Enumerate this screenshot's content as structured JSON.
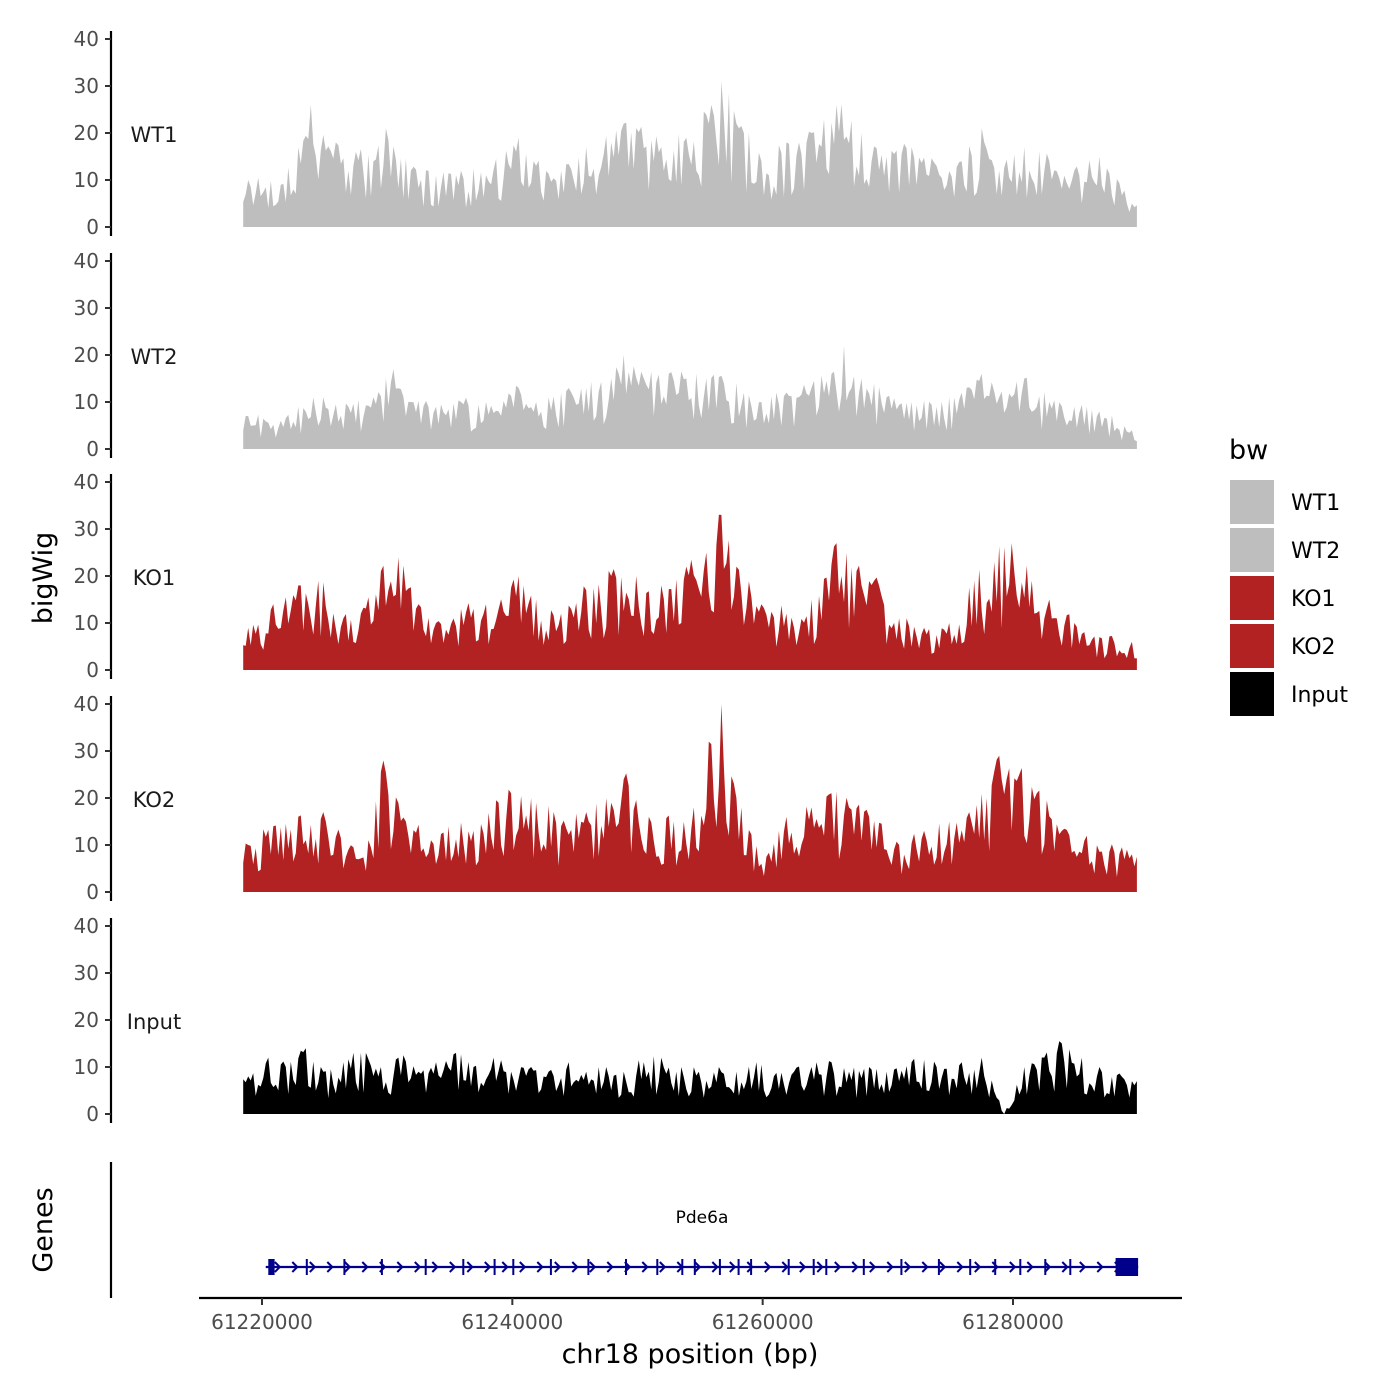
{
  "chart_data": {
    "type": "area",
    "chrom": "chr18",
    "xlabel": "chr18 position (bp)",
    "ylabel": "bigWig",
    "genes_label": "Genes",
    "xlim": [
      61214000,
      61296000
    ],
    "data_xrange": [
      61218500,
      61290000
    ],
    "x_ticks": [
      61220000,
      61240000,
      61260000,
      61280000
    ],
    "x_tick_labels": [
      "61220000",
      "61240000",
      "61260000",
      "61280000"
    ],
    "ylim": [
      0,
      40
    ],
    "y_ticks": [
      0,
      10,
      20,
      30,
      40
    ],
    "y_tick_labels": [
      "0",
      "10",
      "20",
      "30",
      "40"
    ],
    "legend": {
      "title": "bw",
      "entries": [
        {
          "label": "WT1",
          "color": "#bebebe"
        },
        {
          "label": "WT2",
          "color": "#bebebe"
        },
        {
          "label": "KO1",
          "color": "#b22222"
        },
        {
          "label": "KO2",
          "color": "#b22222"
        },
        {
          "label": "Input",
          "color": "#000000"
        }
      ]
    },
    "tracks": [
      {
        "name": "WT1",
        "color": "#bebebe",
        "peaks": [
          [
            61219000,
            10
          ],
          [
            61221500,
            9
          ],
          [
            61223000,
            17
          ],
          [
            61224000,
            26
          ],
          [
            61226000,
            18
          ],
          [
            61227500,
            16
          ],
          [
            61229000,
            14
          ],
          [
            61230000,
            21
          ],
          [
            61232000,
            12
          ],
          [
            61234000,
            11
          ],
          [
            61236000,
            12
          ],
          [
            61238000,
            11
          ],
          [
            61240500,
            19
          ],
          [
            61242000,
            13
          ],
          [
            61244000,
            12
          ],
          [
            61246000,
            17
          ],
          [
            61248000,
            18
          ],
          [
            61249000,
            22
          ],
          [
            61250000,
            21
          ],
          [
            61252000,
            17
          ],
          [
            61254000,
            19
          ],
          [
            61256000,
            26
          ],
          [
            61256800,
            31
          ],
          [
            61258000,
            22
          ],
          [
            61260000,
            14
          ],
          [
            61262000,
            18
          ],
          [
            61264000,
            20
          ],
          [
            61266000,
            26
          ],
          [
            61268000,
            20
          ],
          [
            61270000,
            15
          ],
          [
            61272000,
            17
          ],
          [
            61274000,
            13
          ],
          [
            61276000,
            14
          ],
          [
            61277500,
            21
          ],
          [
            61279000,
            12
          ],
          [
            61281000,
            17
          ],
          [
            61283000,
            14
          ],
          [
            61285000,
            12
          ],
          [
            61287000,
            15
          ],
          [
            61289500,
            5
          ]
        ]
      },
      {
        "name": "WT2",
        "color": "#bebebe",
        "peaks": [
          [
            61219000,
            7
          ],
          [
            61221500,
            6
          ],
          [
            61223000,
            9
          ],
          [
            61225000,
            11
          ],
          [
            61227000,
            9
          ],
          [
            61229000,
            11
          ],
          [
            61230500,
            17
          ],
          [
            61232000,
            10
          ],
          [
            61234000,
            9
          ],
          [
            61236000,
            10
          ],
          [
            61238000,
            10
          ],
          [
            61240500,
            13
          ],
          [
            61242000,
            10
          ],
          [
            61244000,
            12
          ],
          [
            61246000,
            13
          ],
          [
            61248000,
            15
          ],
          [
            61249000,
            20
          ],
          [
            61250500,
            15
          ],
          [
            61252500,
            16
          ],
          [
            61254000,
            15
          ],
          [
            61255500,
            15
          ],
          [
            61257000,
            14
          ],
          [
            61258500,
            12
          ],
          [
            61260000,
            10
          ],
          [
            61262000,
            12
          ],
          [
            61264000,
            13
          ],
          [
            61265500,
            16
          ],
          [
            61266500,
            22
          ],
          [
            61268000,
            15
          ],
          [
            61270000,
            11
          ],
          [
            61272000,
            10
          ],
          [
            61274000,
            9
          ],
          [
            61276000,
            12
          ],
          [
            61277500,
            16
          ],
          [
            61279000,
            11
          ],
          [
            61281000,
            15
          ],
          [
            61283000,
            10
          ],
          [
            61285000,
            9
          ],
          [
            61287000,
            8
          ],
          [
            61289500,
            4
          ]
        ]
      },
      {
        "name": "KO1",
        "color": "#b22222",
        "peaks": [
          [
            61219000,
            9
          ],
          [
            61221000,
            14
          ],
          [
            61223000,
            18
          ],
          [
            61224500,
            19
          ],
          [
            61226500,
            11
          ],
          [
            61228000,
            12
          ],
          [
            61229500,
            21
          ],
          [
            61231000,
            24
          ],
          [
            61232500,
            14
          ],
          [
            61234000,
            10
          ],
          [
            61236000,
            13
          ],
          [
            61238000,
            14
          ],
          [
            61240500,
            20
          ],
          [
            61242000,
            15
          ],
          [
            61244000,
            12
          ],
          [
            61246000,
            17
          ],
          [
            61248000,
            20
          ],
          [
            61250000,
            20
          ],
          [
            61252000,
            18
          ],
          [
            61254000,
            22
          ],
          [
            61255500,
            25
          ],
          [
            61256700,
            33
          ],
          [
            61258000,
            22
          ],
          [
            61260000,
            14
          ],
          [
            61262000,
            12
          ],
          [
            61264000,
            15
          ],
          [
            61266000,
            27
          ],
          [
            61267500,
            21
          ],
          [
            61269000,
            19
          ],
          [
            61271000,
            11
          ],
          [
            61273000,
            9
          ],
          [
            61275000,
            10
          ],
          [
            61277000,
            19
          ],
          [
            61278500,
            23
          ],
          [
            61280000,
            27
          ],
          [
            61281500,
            19
          ],
          [
            61283000,
            15
          ],
          [
            61285000,
            10
          ],
          [
            61287000,
            7
          ],
          [
            61289500,
            6
          ]
        ]
      },
      {
        "name": "KO2",
        "color": "#b22222",
        "peaks": [
          [
            61219000,
            10
          ],
          [
            61221000,
            14
          ],
          [
            61223000,
            16
          ],
          [
            61225000,
            17
          ],
          [
            61227000,
            9
          ],
          [
            61228500,
            11
          ],
          [
            61229800,
            28
          ],
          [
            61231500,
            15
          ],
          [
            61233500,
            11
          ],
          [
            61235000,
            14
          ],
          [
            61237000,
            13
          ],
          [
            61239000,
            19
          ],
          [
            61240000,
            21
          ],
          [
            61242000,
            19
          ],
          [
            61244000,
            14
          ],
          [
            61246000,
            17
          ],
          [
            61248000,
            19
          ],
          [
            61249000,
            24
          ],
          [
            61251000,
            16
          ],
          [
            61253000,
            15
          ],
          [
            61254500,
            18
          ],
          [
            61255800,
            32
          ],
          [
            61256800,
            40
          ],
          [
            61258000,
            20
          ],
          [
            61260000,
            6
          ],
          [
            61262000,
            16
          ],
          [
            61264000,
            18
          ],
          [
            61265500,
            21
          ],
          [
            61267000,
            18
          ],
          [
            61268500,
            16
          ],
          [
            61271000,
            10
          ],
          [
            61273000,
            13
          ],
          [
            61275000,
            15
          ],
          [
            61276500,
            17
          ],
          [
            61278000,
            20
          ],
          [
            61278900,
            29
          ],
          [
            61280500,
            25
          ],
          [
            61282000,
            21
          ],
          [
            61284000,
            13
          ],
          [
            61289500,
            8
          ]
        ]
      },
      {
        "name": "Input",
        "color": "#000000",
        "peaks": [
          [
            61219000,
            8
          ],
          [
            61220500,
            12
          ],
          [
            61222000,
            10
          ],
          [
            61223500,
            14
          ],
          [
            61225000,
            9
          ],
          [
            61226500,
            11
          ],
          [
            61228000,
            13
          ],
          [
            61229500,
            10
          ],
          [
            61231000,
            12
          ],
          [
            61232500,
            9
          ],
          [
            61234000,
            11
          ],
          [
            61235500,
            13
          ],
          [
            61237000,
            10
          ],
          [
            61238500,
            12
          ],
          [
            61240000,
            9
          ],
          [
            61241500,
            10
          ],
          [
            61243000,
            9
          ],
          [
            61244500,
            11
          ],
          [
            61246000,
            9
          ],
          [
            61247500,
            10
          ],
          [
            61249000,
            9
          ],
          [
            61250500,
            11
          ],
          [
            61252000,
            12
          ],
          [
            61253500,
            10
          ],
          [
            61255000,
            9
          ],
          [
            61256500,
            10
          ],
          [
            61258000,
            9
          ],
          [
            61259500,
            11
          ],
          [
            61261000,
            8
          ],
          [
            61262500,
            9
          ],
          [
            61264000,
            10
          ],
          [
            61265500,
            11
          ],
          [
            61267000,
            9
          ],
          [
            61268500,
            10
          ],
          [
            61270000,
            9
          ],
          [
            61272000,
            11
          ],
          [
            61274000,
            10
          ],
          [
            61276000,
            11
          ],
          [
            61277500,
            12
          ],
          [
            61279300,
            0
          ],
          [
            61281000,
            10
          ],
          [
            61282500,
            12
          ],
          [
            61284000,
            15
          ],
          [
            61285500,
            12
          ],
          [
            61287000,
            10
          ],
          [
            61289500,
            7
          ]
        ]
      }
    ],
    "gene": {
      "name": "Pde6a",
      "strand": "+",
      "start": 61220300,
      "end": 61290000,
      "color": "#00008b",
      "exons": [
        [
          61220500,
          61221000
        ],
        [
          61223500,
          61223550
        ],
        [
          61226500,
          61226550
        ],
        [
          61229500,
          61229600
        ],
        [
          61233000,
          61233050
        ],
        [
          61236000,
          61236050
        ],
        [
          61238500,
          61238550
        ],
        [
          61240000,
          61240050
        ],
        [
          61243000,
          61243050
        ],
        [
          61246000,
          61246050
        ],
        [
          61249000,
          61249050
        ],
        [
          61251500,
          61251550
        ],
        [
          61253500,
          61253600
        ],
        [
          61254500,
          61254550
        ],
        [
          61256500,
          61256600
        ],
        [
          61258000,
          61258050
        ],
        [
          61259000,
          61259050
        ],
        [
          61262000,
          61262050
        ],
        [
          61264000,
          61264100
        ],
        [
          61265000,
          61265050
        ],
        [
          61268000,
          61268050
        ],
        [
          61271000,
          61271050
        ],
        [
          61274000,
          61274050
        ],
        [
          61276500,
          61276550
        ],
        [
          61278500,
          61278550
        ],
        [
          61280500,
          61280600
        ],
        [
          61282500,
          61282550
        ],
        [
          61284500,
          61284600
        ],
        [
          61288200,
          61290000
        ]
      ]
    }
  }
}
